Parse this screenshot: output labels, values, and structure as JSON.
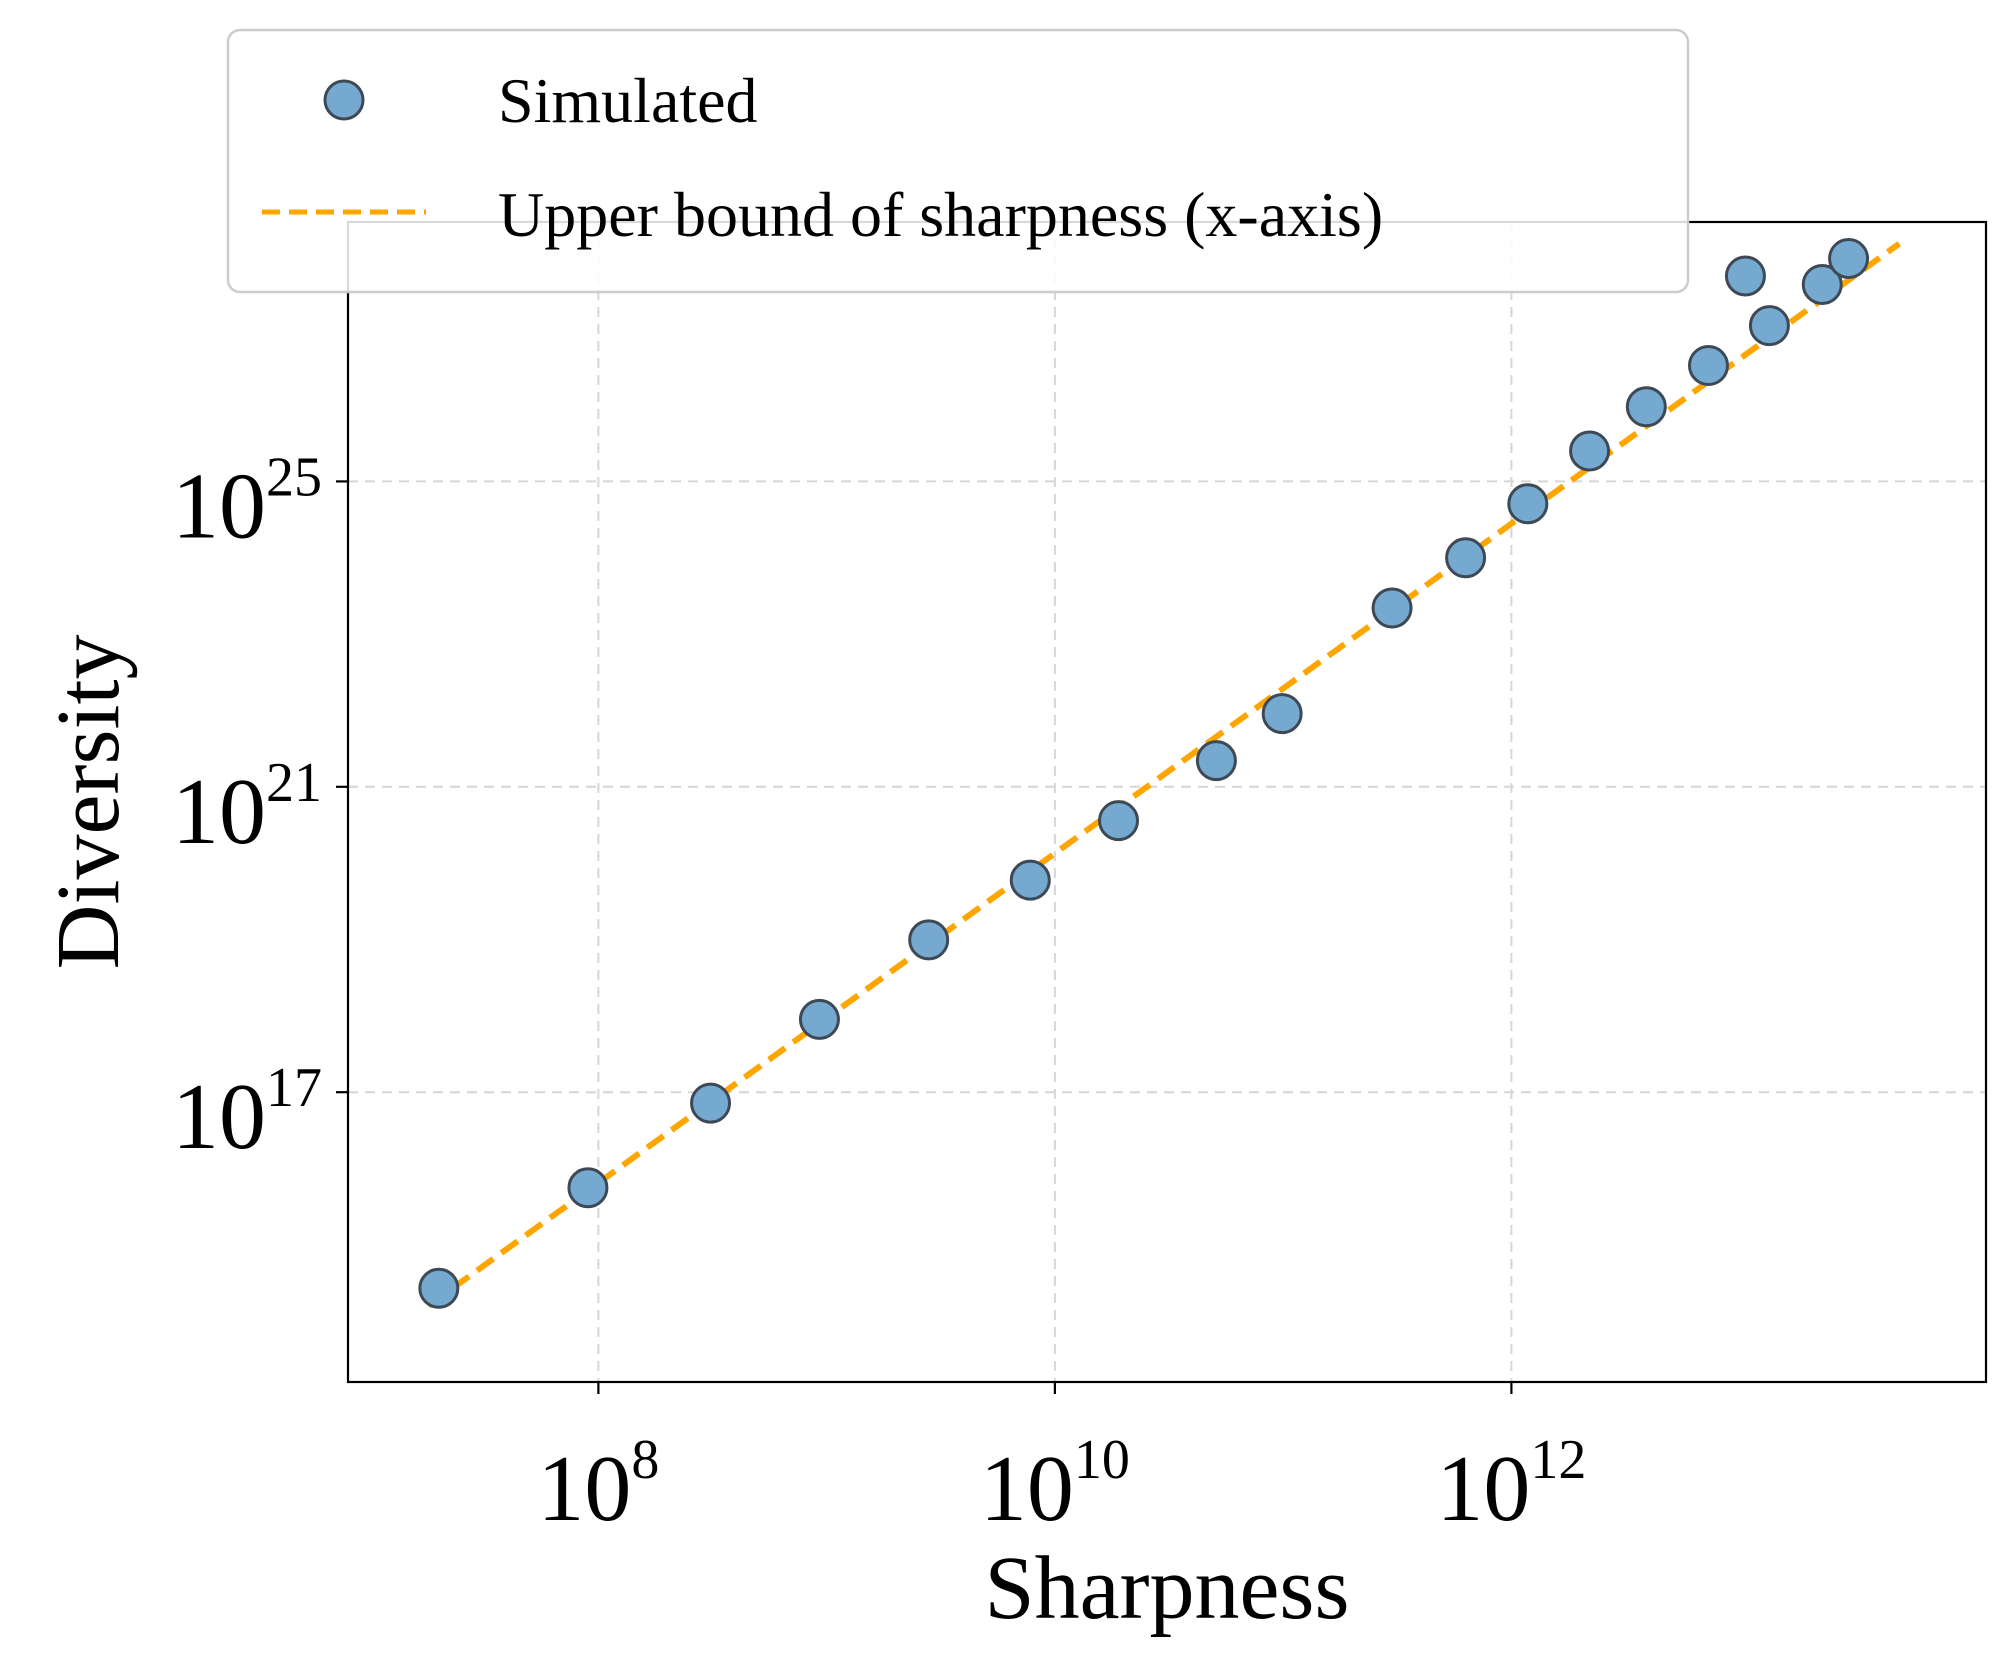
{
  "chart_data": {
    "type": "scatter",
    "xlabel": "Sharpness",
    "ylabel": "Diversity",
    "x_scale": "log",
    "y_scale": "log",
    "xlim": [
      8000000.0,
      120000000000000.0
    ],
    "ylim": [
      16000000000000.0,
      2.5e+28
    ],
    "grid": true,
    "legend_position": "top-left",
    "x_ticks": [
      {
        "base": "10",
        "exp": "8",
        "value": 100000000.0
      },
      {
        "base": "10",
        "exp": "10",
        "value": 10000000000.0
      },
      {
        "base": "10",
        "exp": "12",
        "value": 1000000000000.0
      }
    ],
    "y_ticks": [
      {
        "base": "10",
        "exp": "17",
        "value": 1e+17
      },
      {
        "base": "10",
        "exp": "21",
        "value": 1e+21
      },
      {
        "base": "10",
        "exp": "25",
        "value": 1e+25
      }
    ],
    "series": [
      {
        "name": "Simulated",
        "kind": "scatter",
        "color": "#76a9d0",
        "edge_color": "#3d4a56",
        "points": [
          {
            "x": 20000000.0,
            "y": 270000000000000.0
          },
          {
            "x": 90000000.0,
            "y": 5600000000000000.0
          },
          {
            "x": 310000000.0,
            "y": 7.2e+16
          },
          {
            "x": 930000000.0,
            "y": 9e+17
          },
          {
            "x": 2800000000.0,
            "y": 9.9e+18
          },
          {
            "x": 7800000000.0,
            "y": 6e+19
          },
          {
            "x": 19000000000.0,
            "y": 3.6e+20
          },
          {
            "x": 51000000000.0,
            "y": 2.2e+21
          },
          {
            "x": 99000000000.0,
            "y": 9.1e+21
          },
          {
            "x": 300000000000.0,
            "y": 2.2e+23
          },
          {
            "x": 630000000000.0,
            "y": 1e+24
          },
          {
            "x": 1180000000000.0,
            "y": 5.1e+24
          },
          {
            "x": 2200000000000.0,
            "y": 2.5e+25
          },
          {
            "x": 3900000000000.0,
            "y": 9.5e+25
          },
          {
            "x": 7300000000000.0,
            "y": 3.3e+26
          },
          {
            "x": 10600000000000.0,
            "y": 4.9e+27
          },
          {
            "x": 13500000000000.0,
            "y": 1.1e+27
          },
          {
            "x": 23000000000000.0,
            "y": 3.8e+27
          },
          {
            "x": 30000000000000.0,
            "y": 8.3e+27
          }
        ]
      },
      {
        "name": "Upper bound of sharpness (x-axis)",
        "kind": "line",
        "style": "dashed",
        "color": "#ffa500",
        "points": [
          {
            "x": 18000000.0,
            "y": 160000000000000.0
          },
          {
            "x": 50000000000000.0,
            "y": 1.3e+28
          }
        ]
      }
    ]
  }
}
